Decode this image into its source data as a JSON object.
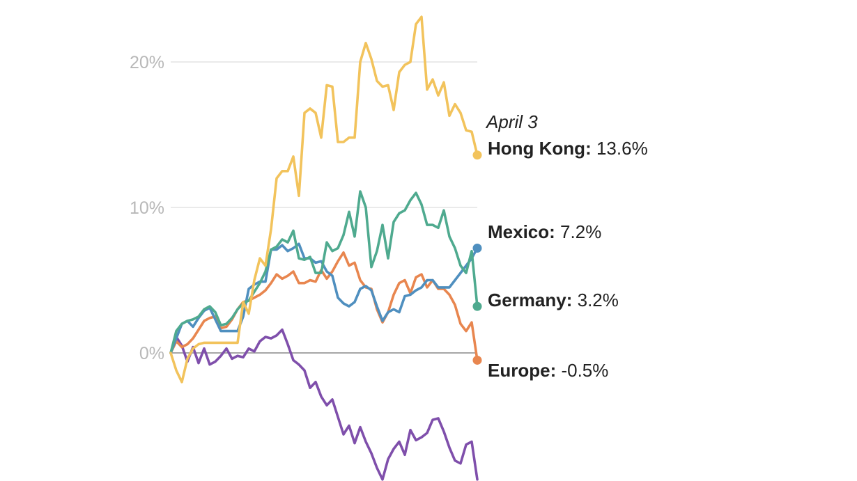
{
  "chart_data": {
    "type": "line",
    "title": "",
    "xlabel": "",
    "ylabel": "",
    "ylim": [
      -8.8,
      23.7
    ],
    "yticks": [
      {
        "value": 0,
        "label": "0%"
      },
      {
        "value": 10,
        "label": "10%"
      },
      {
        "value": 20,
        "label": "20%"
      }
    ],
    "grid": true,
    "date_label": "April 3",
    "series": [
      {
        "name": "Hong Kong",
        "end_label": "13.6%",
        "color": "#f2c35c",
        "values": [
          0,
          -1.2,
          -2.0,
          -0.4,
          0.3,
          0.6,
          0.7,
          0.7,
          0.7,
          0.7,
          0.7,
          0.7,
          0.7,
          3.5,
          2.7,
          5.0,
          6.5,
          6.0,
          8.5,
          12.0,
          12.5,
          12.5,
          13.5,
          10.8,
          16.5,
          16.8,
          16.5,
          14.8,
          18.4,
          18.3,
          14.5,
          14.5,
          14.8,
          14.8,
          20.0,
          21.3,
          20.2,
          18.7,
          18.3,
          18.4,
          16.7,
          19.3,
          19.8,
          20.0,
          22.6,
          23.1,
          18.1,
          18.8,
          17.7,
          18.6,
          16.3,
          17.1,
          16.5,
          15.3,
          15.2,
          13.6
        ]
      },
      {
        "name": "Mexico",
        "end_label": "7.2%",
        "color": "#4f8fbf",
        "values": [
          0,
          1.0,
          2.0,
          2.2,
          1.8,
          2.4,
          2.9,
          3.1,
          2.3,
          1.5,
          1.5,
          1.5,
          1.5,
          2.5,
          4.4,
          4.7,
          4.9,
          4.9,
          7.1,
          7.1,
          7.4,
          7.0,
          7.2,
          7.5,
          6.5,
          6.5,
          6.2,
          6.3,
          5.6,
          5.3,
          3.8,
          3.4,
          3.2,
          3.5,
          4.4,
          4.6,
          4.3,
          3.2,
          2.2,
          2.8,
          3.0,
          2.8,
          3.9,
          4.0,
          4.3,
          4.5,
          5.0,
          5.0,
          4.5,
          4.5,
          4.5,
          5.0,
          5.5,
          6.0,
          6.5,
          7.2
        ]
      },
      {
        "name": "Germany",
        "end_label": "3.2%",
        "color": "#4faa8f",
        "values": [
          0,
          1.5,
          2.0,
          2.2,
          2.3,
          2.5,
          3.0,
          3.2,
          2.8,
          1.9,
          2.0,
          2.4,
          3.0,
          3.4,
          3.6,
          4.2,
          4.8,
          5.6,
          7.1,
          7.3,
          7.8,
          7.6,
          8.4,
          6.5,
          6.4,
          6.6,
          5.5,
          5.5,
          7.6,
          7.0,
          7.2,
          8.1,
          9.7,
          8.0,
          11.1,
          10.0,
          5.9,
          7.0,
          8.8,
          6.5,
          9.0,
          9.6,
          9.8,
          10.5,
          11.0,
          10.2,
          8.8,
          8.8,
          8.6,
          9.8,
          8.0,
          7.2,
          6.0,
          5.5,
          7.0,
          3.2
        ]
      },
      {
        "name": "Europe",
        "end_label": "-0.5%",
        "color": "#e8864f",
        "values": [
          0,
          0.8,
          0.4,
          0.6,
          1.0,
          1.6,
          2.2,
          2.4,
          2.5,
          1.7,
          1.8,
          2.3,
          3.0,
          3.5,
          3.6,
          3.8,
          4.0,
          4.3,
          4.8,
          5.4,
          5.1,
          5.3,
          5.6,
          4.8,
          4.8,
          5.0,
          4.9,
          5.7,
          5.1,
          5.6,
          6.3,
          6.9,
          6.0,
          6.2,
          5.0,
          4.5,
          4.4,
          3.0,
          2.1,
          2.8,
          4.0,
          4.8,
          5.0,
          4.1,
          5.2,
          5.4,
          4.5,
          5.0,
          4.4,
          4.4,
          4.0,
          3.3,
          2.0,
          1.5,
          2.1,
          -0.5
        ]
      },
      {
        "name": "",
        "end_label": "",
        "color": "#7f4fab",
        "values": [
          0,
          1.1,
          0.5,
          -0.6,
          0.4,
          -0.7,
          0.3,
          -0.8,
          -0.6,
          -0.2,
          0.3,
          -0.4,
          -0.2,
          -0.3,
          0.3,
          0.1,
          0.8,
          1.1,
          1.0,
          1.2,
          1.6,
          0.6,
          -0.5,
          -0.8,
          -1.2,
          -2.4,
          -2.0,
          -3.0,
          -3.6,
          -3.2,
          -4.4,
          -5.6,
          -5.0,
          -6.2,
          -5.1,
          -6.1,
          -6.9,
          -7.9,
          -8.7,
          -7.3,
          -6.6,
          -6.1,
          -7.0,
          -5.3,
          -6.0,
          -5.8,
          -5.5,
          -4.6,
          -4.5,
          -5.4,
          -6.5,
          -7.4,
          -7.6,
          -6.3,
          -6.1,
          -8.7
        ]
      }
    ]
  }
}
